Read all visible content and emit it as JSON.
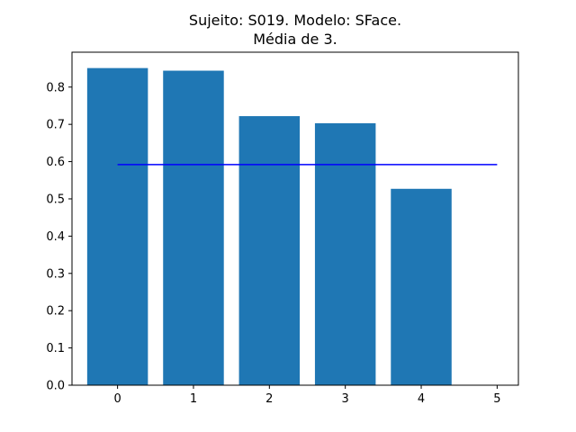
{
  "chart_data": {
    "type": "bar",
    "title_lines": [
      "Sujeito: S019. Modelo: SFace.",
      "Média de 3."
    ],
    "categories": [
      0,
      1,
      2,
      3,
      4
    ],
    "values": [
      0.851,
      0.844,
      0.722,
      0.703,
      0.527
    ],
    "bar_color": "#1f77b4",
    "reference_line": {
      "value": 0.592,
      "x_start": 0,
      "x_end": 5,
      "color": "#0000ff"
    },
    "xlim": [
      -0.6,
      5.28
    ],
    "ylim": [
      0,
      0.8936
    ],
    "x_ticks": [
      0,
      1,
      2,
      3,
      4,
      5
    ],
    "y_ticks": [
      0.0,
      0.1,
      0.2,
      0.3,
      0.4,
      0.5,
      0.6,
      0.7,
      0.8
    ],
    "xlabel": "",
    "ylabel": "",
    "grid": false,
    "legend": "none"
  }
}
